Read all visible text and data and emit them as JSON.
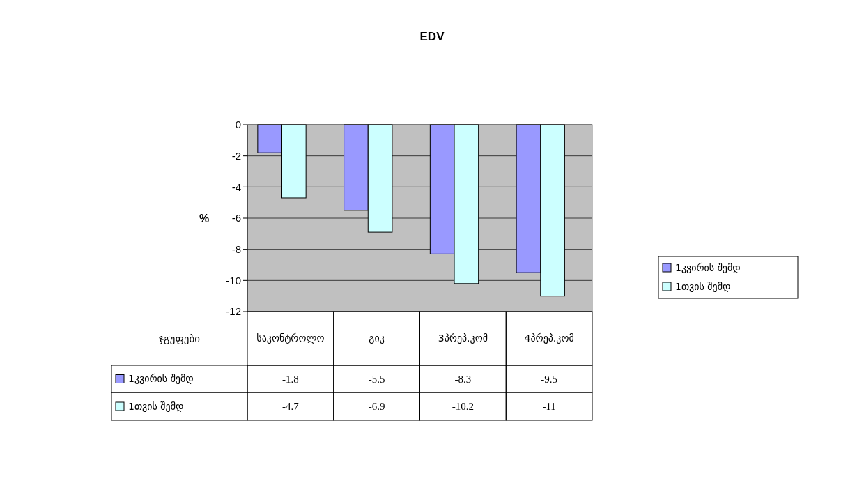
{
  "chart_data": {
    "type": "bar",
    "title": "EDV",
    "ylabel": "%",
    "xlabel": "ჯგუფები",
    "categories": [
      "საკონტროლო",
      "გიკ",
      "3პრეპ.კომ",
      "4პრეპ.კომ"
    ],
    "series": [
      {
        "name": "1კვირის შემდ",
        "color": "#9999ff",
        "values": [
          -1.8,
          -5.5,
          -8.3,
          -9.5
        ]
      },
      {
        "name": "1თვის შემდ",
        "color": "#ccffff",
        "values": [
          -4.7,
          -6.9,
          -10.2,
          -11
        ]
      }
    ],
    "ylim": [
      -12,
      0
    ],
    "yticks": [
      0,
      -2,
      -4,
      -6,
      -8,
      -10,
      -12
    ],
    "grid": "y",
    "legend": "right",
    "data_labels": true
  }
}
